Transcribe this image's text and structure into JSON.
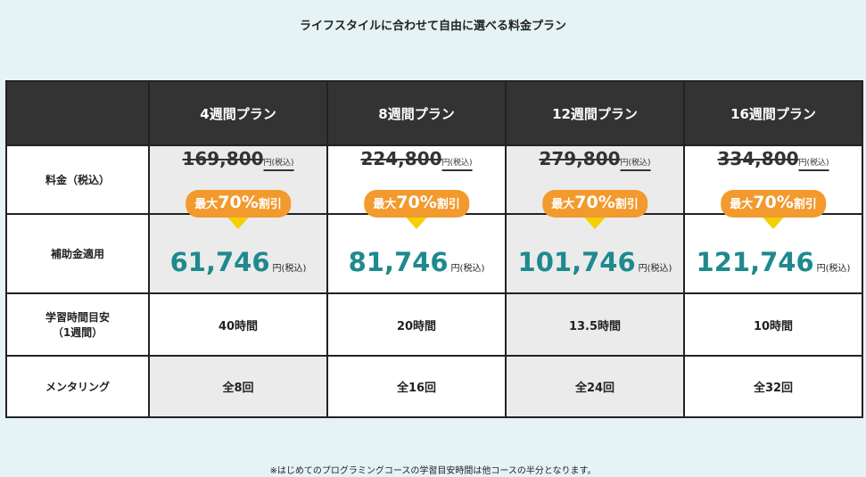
{
  "heading": "ライフスタイルに合わせて自由に選べる料金プラン",
  "rows": {
    "price": "料金（税込）",
    "subsidy": "補助金適用",
    "study_line1": "学習時間目安",
    "study_line2": "（1週間）",
    "mentoring": "メンタリング"
  },
  "unit": "円(税込)",
  "discount": {
    "prefix": "最大",
    "percent": "70%",
    "suffix": "割引"
  },
  "plans": [
    {
      "name": "4週間プラン",
      "original_price": "169,800",
      "subsidized_price": "61,746",
      "study_time": "40時間",
      "mentoring": "全8回"
    },
    {
      "name": "8週間プラン",
      "original_price": "224,800",
      "subsidized_price": "81,746",
      "study_time": "20時間",
      "mentoring": "全16回"
    },
    {
      "name": "12週間プラン",
      "original_price": "279,800",
      "subsidized_price": "101,746",
      "study_time": "13.5時間",
      "mentoring": "全24回"
    },
    {
      "name": "16週間プラン",
      "original_price": "334,800",
      "subsidized_price": "121,746",
      "study_time": "10時間",
      "mentoring": "全32回"
    }
  ],
  "footnote": "※はじめてのプログラミングコースの学習目安時間は他コースの半分となります。",
  "colors": {
    "teal_price": "#1f8a8e",
    "badge_orange": "#f29a2e",
    "arrow_yellow": "#f5d000",
    "header_dark": "#333333"
  }
}
